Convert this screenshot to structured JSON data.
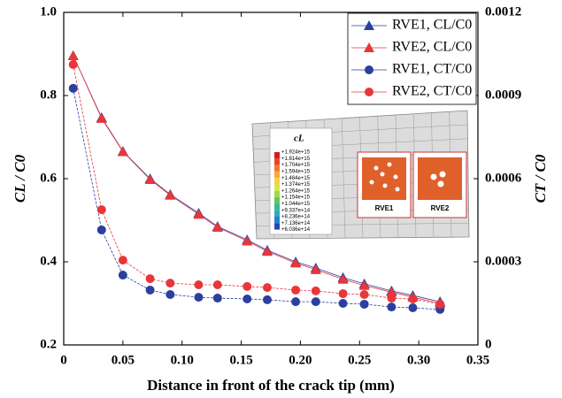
{
  "chart_data": {
    "type": "line",
    "xlabel": "Distance in front of the crack tip (mm)",
    "ylabel": "CL / C0",
    "y2label": "CT / C0",
    "x": [
      0.008,
      0.032,
      0.05,
      0.073,
      0.09,
      0.114,
      0.13,
      0.155,
      0.172,
      0.196,
      0.213,
      0.236,
      0.254,
      0.277,
      0.295,
      0.318
    ],
    "series": [
      {
        "name": "RVE1, CL/C0",
        "color": "#2b3f9e",
        "marker": "triangle",
        "axis": "y",
        "values": [
          0.896,
          0.747,
          0.666,
          0.6,
          0.562,
          0.517,
          0.485,
          0.453,
          0.428,
          0.4,
          0.385,
          0.362,
          0.347,
          0.33,
          0.319,
          0.304
        ]
      },
      {
        "name": "RVE2, CL/C0",
        "color": "#e8363a",
        "marker": "triangle",
        "axis": "y",
        "values": [
          0.896,
          0.745,
          0.665,
          0.598,
          0.56,
          0.514,
          0.483,
          0.45,
          0.425,
          0.397,
          0.381,
          0.358,
          0.343,
          0.327,
          0.315,
          0.3
        ]
      },
      {
        "name": "RVE1, CT/C0",
        "color": "#2b3f9e",
        "marker": "circle",
        "axis": "y2",
        "values": [
          0.000926,
          0.000415,
          0.000252,
          0.000198,
          0.000182,
          0.000172,
          0.000169,
          0.000166,
          0.000163,
          0.000156,
          0.000156,
          0.00015,
          0.000147,
          0.000137,
          0.000134,
          0.000128
        ]
      },
      {
        "name": "RVE2, CT/C0",
        "color": "#e8363a",
        "marker": "circle",
        "axis": "y2",
        "values": [
          0.001012,
          0.000488,
          0.000306,
          0.000239,
          0.000223,
          0.000217,
          0.000217,
          0.000211,
          0.000207,
          0.000198,
          0.000195,
          0.000185,
          0.000182,
          0.000169,
          0.000166,
          0.000147
        ]
      }
    ],
    "xlim": [
      0,
      0.35
    ],
    "xticks": [
      0,
      0.05,
      {
        "value": 0.1,
        "label": "0.10"
      },
      0.15,
      {
        "value": 0.2,
        "label": "0.20"
      },
      0.25,
      {
        "value": 0.3,
        "label": "0.30"
      },
      0.35
    ],
    "ylim": [
      0.2,
      1.0
    ],
    "yticks": [
      0.2,
      0.4,
      0.6,
      0.8,
      {
        "value": 1,
        "label": "1.0"
      }
    ],
    "y2lim": [
      0,
      0.0012
    ],
    "y2ticks": [
      0,
      0.0003,
      0.0006,
      0.0009,
      0.0012
    ],
    "legend": "top-right",
    "inset": {
      "title": "cL",
      "colorbar_labels": [
        "+1.924e+15",
        "+1.814e+15",
        "+1.704e+15",
        "+1.594e+15",
        "+1.484e+15",
        "+1.374e+15",
        "+1.264e+15",
        "+1.154e+15",
        "+1.044e+15",
        "+9.337e+14",
        "+8.236e+14",
        "+7.136e+14",
        "+6.036e+14"
      ],
      "panels": [
        "RVE1",
        "RVE2"
      ]
    }
  }
}
